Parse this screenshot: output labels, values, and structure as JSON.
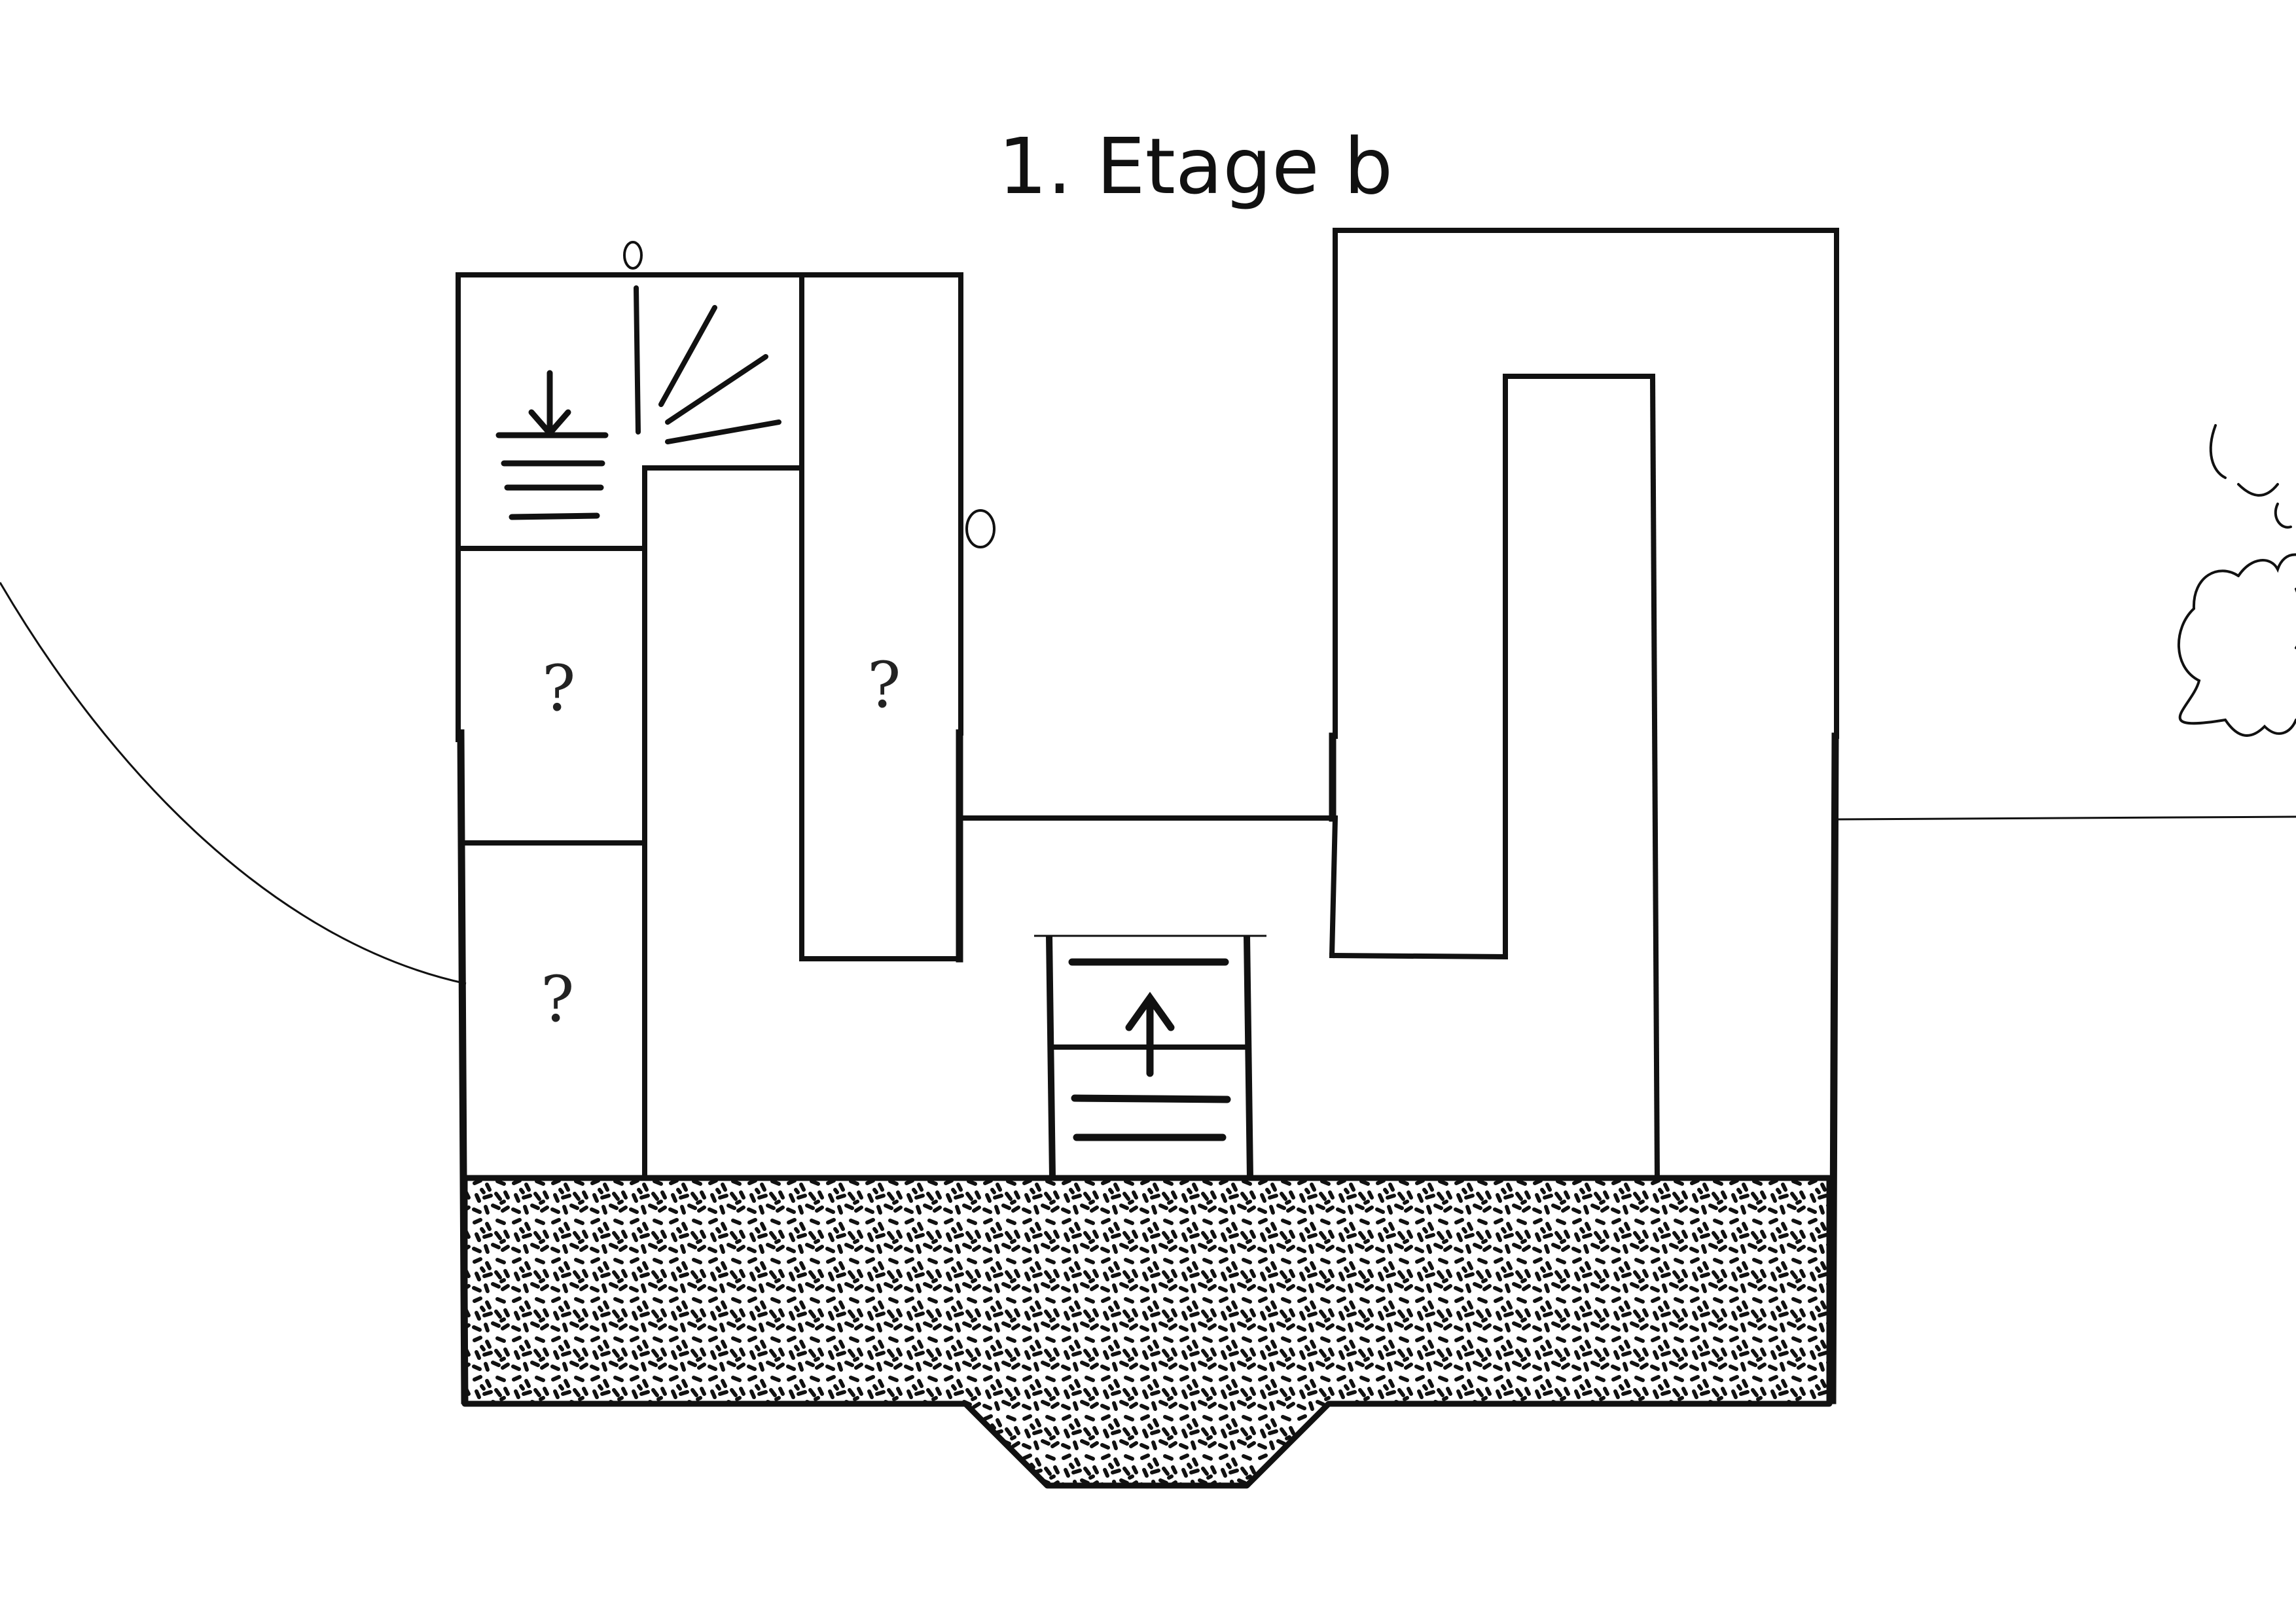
{
  "page": {
    "title": "1. Etage b"
  },
  "plan": {
    "rooms": [
      {
        "id": "room-left-middle",
        "label": "?"
      },
      {
        "id": "room-left-lower",
        "label": "?"
      },
      {
        "id": "room-center-left",
        "label": "?"
      }
    ],
    "symbols": {
      "stairs_down": "stairs-down-arrow-icon",
      "stairs_up": "stairs-up-arrow-icon",
      "lamp": "lamp-rays-icon",
      "bush": "bush-icon"
    },
    "floor_pattern": "terrazzo-hatch"
  },
  "colors": {
    "ink": "#111111",
    "paper": "#ffffff"
  }
}
